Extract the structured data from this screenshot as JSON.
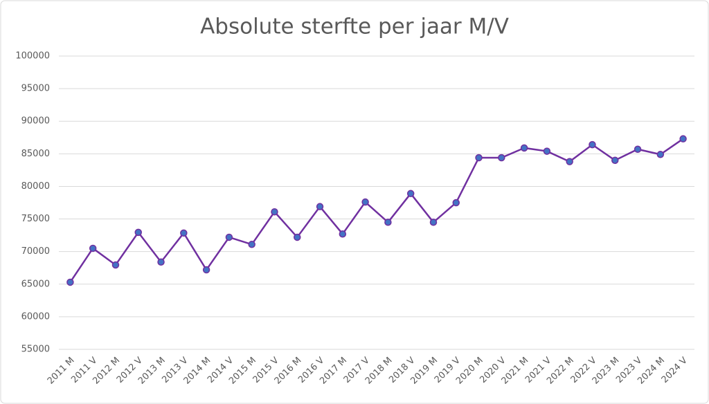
{
  "chart_data": {
    "type": "line",
    "title": "Absolute sterfte per jaar M/V",
    "categories": [
      "2011 M",
      "2011 V",
      "2012 M",
      "2012 V",
      "2013 M",
      "2013 V",
      "2014 M",
      "2014 V",
      "2015 M",
      "2015 V",
      "2016 M",
      "2016 V",
      "2017 M",
      "2017 V",
      "2018 M",
      "2018 V",
      "2019 M",
      "2019 V",
      "2020 M",
      "2020 V",
      "2021 M",
      "2021 V",
      "2022 M",
      "2022 V",
      "2023 M",
      "2023 V",
      "2024 M",
      "2024 V"
    ],
    "values": [
      65300,
      70500,
      67950,
      72950,
      68400,
      72850,
      67200,
      72200,
      71100,
      76100,
      72200,
      76900,
      72700,
      77600,
      74500,
      78900,
      74500,
      77500,
      84400,
      84400,
      85900,
      85400,
      83800,
      86400,
      84000,
      85700,
      84900,
      87300
    ],
    "color": "#7030a0",
    "marker_color": "#4472c4",
    "ylim": [
      55000,
      100000
    ],
    "yticks": [
      55000,
      60000,
      65000,
      70000,
      75000,
      80000,
      85000,
      90000,
      95000,
      100000
    ],
    "grid": true
  }
}
